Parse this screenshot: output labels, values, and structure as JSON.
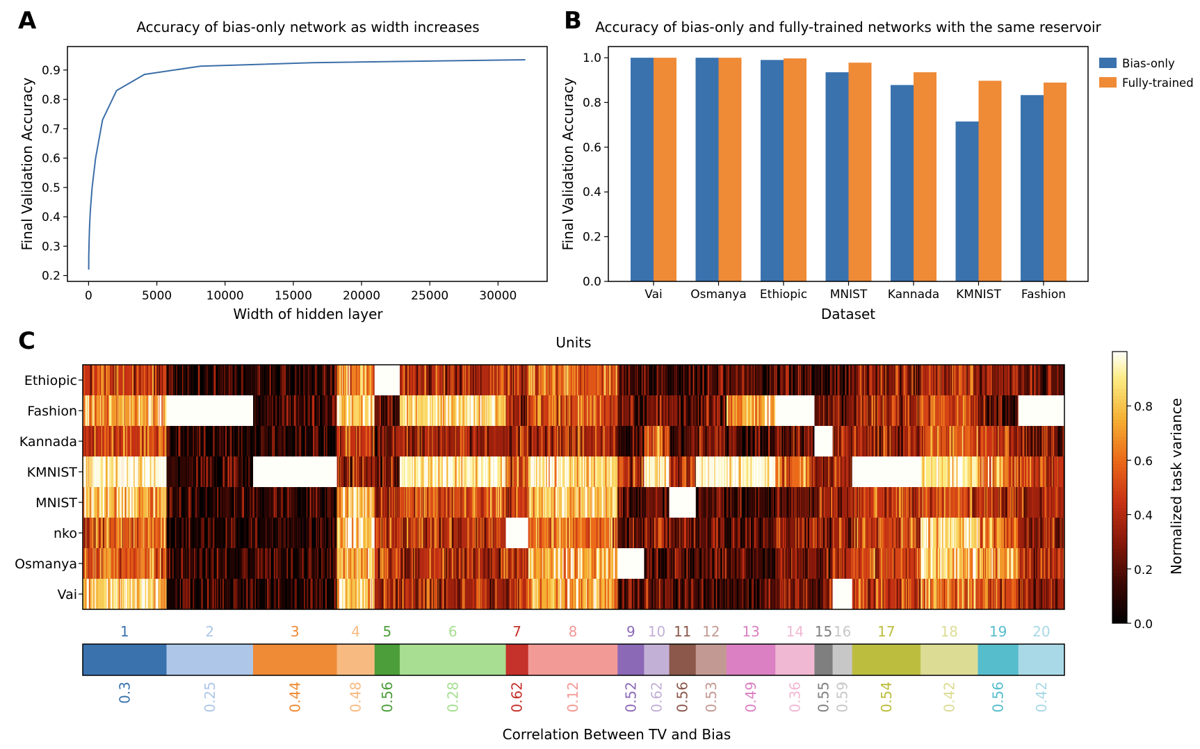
{
  "panels": {
    "a": {
      "letter": "A"
    },
    "b": {
      "letter": "B"
    },
    "c": {
      "letter": "C"
    }
  },
  "chart_data": [
    {
      "id": "A",
      "type": "line",
      "title": "Accuracy of bias-only network as width increases",
      "xlabel": "Width of hidden layer",
      "ylabel": "Final Validation Accuracy",
      "xlim": [
        -1550,
        33600
      ],
      "ylim": [
        0.18,
        0.98
      ],
      "xticks": [
        0,
        5000,
        10000,
        15000,
        20000,
        25000,
        30000
      ],
      "yticks": [
        0.2,
        0.3,
        0.4,
        0.5,
        0.6,
        0.7,
        0.8,
        0.9
      ],
      "color": "#3b6ea8",
      "x": [
        8,
        16,
        32,
        64,
        128,
        256,
        512,
        1024,
        2048,
        4096,
        8192,
        16384,
        32000
      ],
      "y": [
        0.22,
        0.27,
        0.31,
        0.36,
        0.42,
        0.5,
        0.6,
        0.73,
        0.83,
        0.885,
        0.913,
        0.925,
        0.935
      ]
    },
    {
      "id": "B",
      "type": "bar",
      "title": "Accuracy of bias-only and fully-trained networks with the same reservoir",
      "xlabel": "Dataset",
      "ylabel": "Final Validation Accuracy",
      "ylim": [
        0.0,
        1.05
      ],
      "yticks": [
        0.0,
        0.2,
        0.4,
        0.6,
        0.8,
        1.0
      ],
      "categories": [
        "Vai",
        "Osmanya",
        "Ethiopic",
        "MNIST",
        "Kannada",
        "KMNIST",
        "Fashion"
      ],
      "series": [
        {
          "name": "Bias-only",
          "color": "#3a72ae",
          "values": [
            1.0,
            1.0,
            0.99,
            0.935,
            0.878,
            0.715,
            0.833
          ]
        },
        {
          "name": "Fully-trained",
          "color": "#ef8a36",
          "values": [
            1.0,
            1.0,
            0.997,
            0.978,
            0.935,
            0.897,
            0.889
          ]
        }
      ],
      "legend_position": "outside-right"
    },
    {
      "id": "C",
      "type": "heatmap",
      "title": "Units",
      "xlabel": "Correlation Between TV and Bias",
      "rows": [
        "Ethiopic",
        "Fashion",
        "Kannada",
        "KMNIST",
        "MNIST",
        "nko",
        "Osmanya",
        "Vai"
      ],
      "colorbar": {
        "label": "Normalized task variance",
        "range": [
          0.0,
          1.0
        ],
        "ticks": [
          0.0,
          0.2,
          0.4,
          0.6,
          0.8
        ]
      },
      "clusters": [
        {
          "id": "1",
          "units": 60,
          "color": "#3a72ae",
          "corr": "0.3",
          "means": [
            0.45,
            0.7,
            0.45,
            0.97,
            0.78,
            0.55,
            0.55,
            0.82
          ]
        },
        {
          "id": "2",
          "units": 62,
          "color": "#aec7e8",
          "corr": "0.25",
          "means": [
            0.07,
            1.0,
            0.05,
            0.12,
            0.08,
            0.06,
            0.08,
            0.06
          ]
        },
        {
          "id": "3",
          "units": 60,
          "color": "#ef8a36",
          "corr": "0.44",
          "means": [
            0.07,
            0.12,
            0.07,
            1.0,
            0.1,
            0.06,
            0.07,
            0.06
          ]
        },
        {
          "id": "4",
          "units": 27,
          "color": "#f7bb82",
          "corr": "0.48",
          "means": [
            0.65,
            0.85,
            0.45,
            0.35,
            0.72,
            0.8,
            0.78,
            0.8
          ]
        },
        {
          "id": "5",
          "units": 18,
          "color": "#4c9e3a",
          "corr": "0.56",
          "means": [
            1.0,
            0.25,
            0.2,
            0.25,
            0.35,
            0.4,
            0.45,
            0.35
          ]
        },
        {
          "id": "6",
          "units": 76,
          "color": "#a8de91",
          "corr": "0.28",
          "means": [
            0.4,
            0.85,
            0.35,
            0.92,
            0.5,
            0.4,
            0.4,
            0.35
          ]
        },
        {
          "id": "7",
          "units": 16,
          "color": "#c5312b",
          "corr": "0.62",
          "means": [
            0.4,
            0.35,
            0.35,
            0.5,
            0.45,
            1.0,
            0.35,
            0.4
          ]
        },
        {
          "id": "8",
          "units": 64,
          "color": "#f29a96",
          "corr": "0.12",
          "means": [
            0.55,
            0.5,
            0.4,
            0.85,
            0.8,
            0.6,
            0.75,
            0.75
          ]
        },
        {
          "id": "9",
          "units": 19,
          "color": "#8c69b7",
          "corr": "0.52",
          "means": [
            0.12,
            0.2,
            0.12,
            0.4,
            0.18,
            0.2,
            1.0,
            0.2
          ]
        },
        {
          "id": "10",
          "units": 18,
          "color": "#c3b0d6",
          "corr": "0.62",
          "means": [
            0.15,
            0.25,
            0.55,
            0.97,
            0.25,
            0.3,
            0.15,
            0.3
          ]
        },
        {
          "id": "11",
          "units": 19,
          "color": "#8b584b",
          "corr": "0.56",
          "means": [
            0.1,
            0.15,
            0.15,
            0.35,
            1.0,
            0.2,
            0.2,
            0.15
          ]
        },
        {
          "id": "12",
          "units": 22,
          "color": "#c39a93",
          "corr": "0.53",
          "means": [
            0.15,
            0.2,
            0.25,
            0.97,
            0.15,
            0.2,
            0.2,
            0.15
          ]
        },
        {
          "id": "13",
          "units": 35,
          "color": "#db80c2",
          "corr": "0.49",
          "means": [
            0.2,
            0.75,
            0.15,
            0.97,
            0.15,
            0.15,
            0.15,
            0.15
          ]
        },
        {
          "id": "14",
          "units": 28,
          "color": "#f0b8d2",
          "corr": "0.36",
          "means": [
            0.15,
            1.0,
            0.25,
            0.6,
            0.25,
            0.3,
            0.3,
            0.25
          ]
        },
        {
          "id": "15",
          "units": 13,
          "color": "#7f7f7f",
          "corr": "0.55",
          "means": [
            0.12,
            0.2,
            1.0,
            0.3,
            0.35,
            0.3,
            0.3,
            0.3
          ]
        },
        {
          "id": "16",
          "units": 14,
          "color": "#c7c7c7",
          "corr": "0.59",
          "means": [
            0.12,
            0.25,
            0.3,
            0.4,
            0.35,
            0.35,
            0.4,
            1.0
          ]
        },
        {
          "id": "17",
          "units": 49,
          "color": "#bcbd3e",
          "corr": "0.54",
          "means": [
            0.3,
            0.35,
            0.35,
            1.0,
            0.45,
            0.5,
            0.5,
            0.45
          ]
        },
        {
          "id": "18",
          "units": 41,
          "color": "#dcdc95",
          "corr": "0.42",
          "means": [
            0.4,
            0.5,
            0.55,
            0.9,
            0.5,
            0.85,
            0.85,
            0.6
          ]
        },
        {
          "id": "19",
          "units": 29,
          "color": "#56bdcc",
          "corr": "0.56",
          "means": [
            0.35,
            0.2,
            0.45,
            0.65,
            0.4,
            0.6,
            0.7,
            0.5
          ]
        },
        {
          "id": "20",
          "units": 33,
          "color": "#a9d9e6",
          "corr": "0.42",
          "means": [
            0.2,
            1.0,
            0.25,
            0.45,
            0.35,
            0.35,
            0.4,
            0.35
          ]
        }
      ]
    }
  ]
}
